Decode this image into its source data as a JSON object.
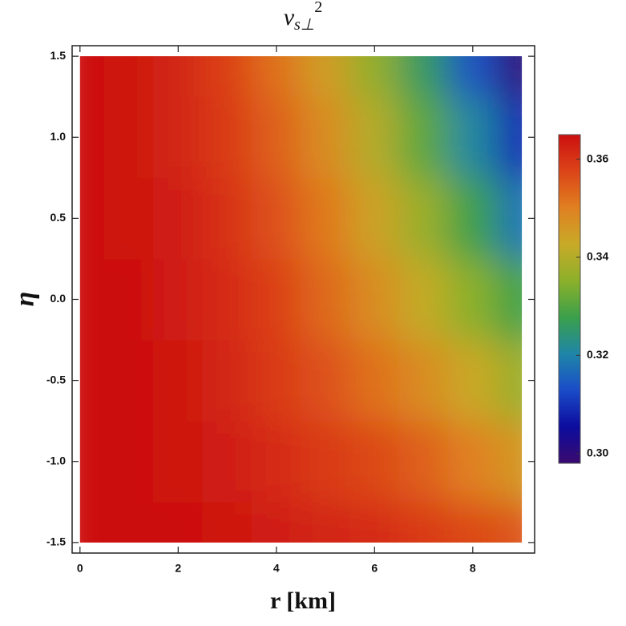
{
  "chart_data": {
    "type": "heatmap",
    "title": {
      "base": "v",
      "subscript": "s⊥",
      "superscript": "2"
    },
    "x_label": "r [km]",
    "y_label": "η",
    "x": [
      0,
      1,
      2,
      3,
      4,
      5,
      6,
      7,
      8,
      9
    ],
    "y": [
      -1.5,
      -1,
      -0.5,
      0,
      0.5,
      1,
      1.5
    ],
    "values": [
      [
        0.365,
        0.365,
        0.365,
        0.364,
        0.363,
        0.362,
        0.361,
        0.359,
        0.357,
        0.355
      ],
      [
        0.365,
        0.365,
        0.364,
        0.363,
        0.361,
        0.359,
        0.357,
        0.354,
        0.35,
        0.346
      ],
      [
        0.365,
        0.365,
        0.364,
        0.362,
        0.359,
        0.356,
        0.352,
        0.348,
        0.343,
        0.337
      ],
      [
        0.365,
        0.365,
        0.363,
        0.361,
        0.358,
        0.353,
        0.348,
        0.342,
        0.335,
        0.328
      ],
      [
        0.365,
        0.364,
        0.363,
        0.36,
        0.356,
        0.351,
        0.344,
        0.337,
        0.328,
        0.318
      ],
      [
        0.365,
        0.364,
        0.362,
        0.359,
        0.354,
        0.348,
        0.34,
        0.331,
        0.321,
        0.309
      ],
      [
        0.365,
        0.364,
        0.362,
        0.358,
        0.352,
        0.345,
        0.336,
        0.326,
        0.314,
        0.3
      ]
    ],
    "xlim": [
      -0.16,
      9.26
    ],
    "ylim": [
      -1.565,
      1.565
    ],
    "xticks": [
      0,
      2,
      4,
      6,
      8
    ],
    "yticks": [
      -1.5,
      {
        "value": -1,
        "label": "-1.0"
      },
      -0.5,
      {
        "value": 0,
        "label": "0.0"
      },
      0.5,
      {
        "value": 1,
        "label": "1.0"
      },
      1.5
    ],
    "clim": [
      0.298,
      0.365
    ],
    "cticks": [
      {
        "value": 0.3,
        "label": "0.30"
      },
      {
        "value": 0.32,
        "label": "0.32"
      },
      {
        "value": 0.34,
        "label": "0.34"
      },
      {
        "value": 0.36,
        "label": "0.36"
      }
    ],
    "colormap": [
      "#3a0a6e",
      "#0c0c9e",
      "#1a4cc8",
      "#1f86a8",
      "#3aa04a",
      "#8cb02a",
      "#c8aa28",
      "#e08020",
      "#dc4418",
      "#cc1010"
    ]
  }
}
